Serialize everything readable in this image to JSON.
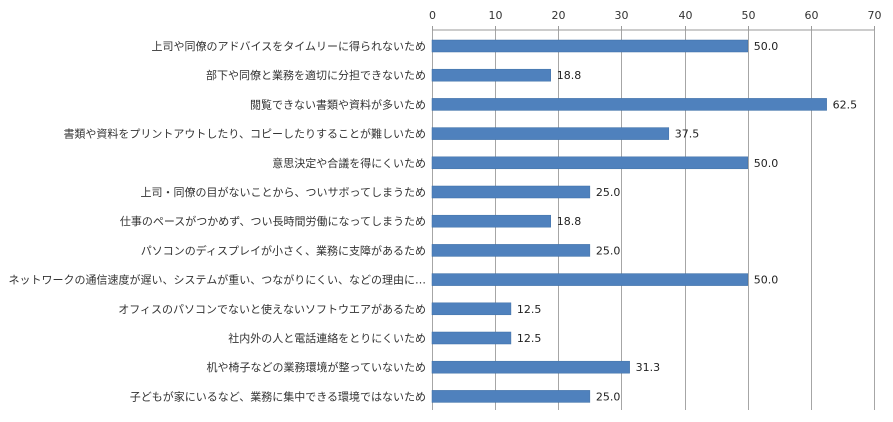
{
  "chart_data": {
    "type": "bar",
    "orientation": "horizontal",
    "title": "",
    "xlabel": "",
    "ylabel": "",
    "xlim": [
      0,
      70
    ],
    "x_ticks": [
      0,
      10,
      20,
      30,
      40,
      50,
      60,
      70
    ],
    "axis_position": "top",
    "grid": true,
    "legend": "none",
    "bar_color": "#4F81BD",
    "categories": [
      "上司や同僚のアドバイスをタイムリーに得られないため",
      "部下や同僚と業務を適切に分担できないため",
      "閲覧できない書類や資料が多いため",
      "書類や資料をプリントアウトしたり、コピーしたりすることが難しいため",
      "意思決定や合議を得にくいため",
      "上司・同僚の目がないことから、ついサボってしまうため",
      "仕事のペースがつかめず、つい長時間労働になってしまうため",
      "パソコンのディスプレイが小さく、業務に支障があるため",
      "ネットワークの通信速度が遅い、システムが重い、つながりにくい、などの理由に…",
      "オフィスのパソコンでないと使えないソフトウエアがあるため",
      "社内外の人と電話連絡をとりにくいため",
      "机や椅子などの業務環境が整っていないため",
      "子どもが家にいるなど、業務に集中できる環境ではないため"
    ],
    "values": [
      50.0,
      18.8,
      62.5,
      37.5,
      50.0,
      25.0,
      18.8,
      25.0,
      50.0,
      12.5,
      12.5,
      31.3,
      25.0
    ],
    "value_labels": [
      "50.0",
      "18.8",
      "62.5",
      "37.5",
      "50.0",
      "25.0",
      "18.8",
      "25.0",
      "50.0",
      "12.5",
      "12.5",
      "31.3",
      "25.0"
    ]
  }
}
